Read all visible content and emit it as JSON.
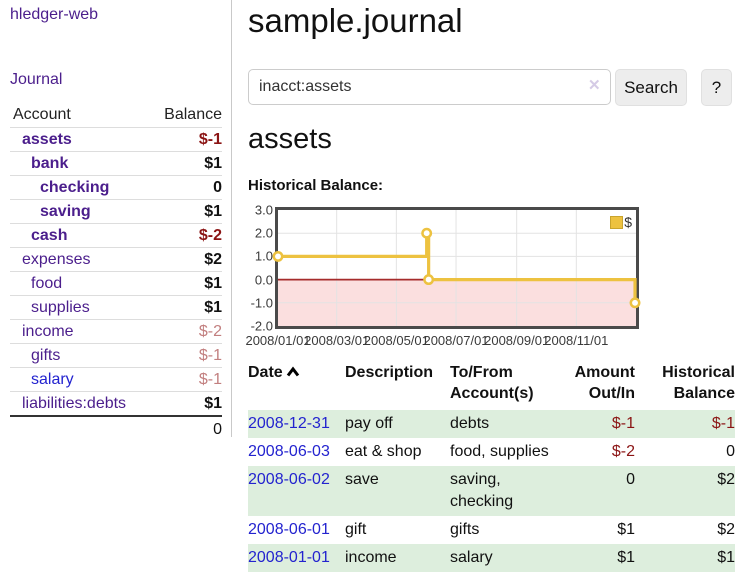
{
  "app": {
    "brand": "hledger-web",
    "nav_journal": "Journal"
  },
  "sidebar": {
    "headers": {
      "account": "Account",
      "balance": "Balance"
    },
    "accounts": [
      {
        "account": "assets",
        "balance": "$-1",
        "indent": 1,
        "strong": true,
        "bal_class": "neg-strong"
      },
      {
        "account": "bank",
        "balance": "$1",
        "indent": 2,
        "strong": true,
        "bal_class": "pos-strong"
      },
      {
        "account": "checking",
        "balance": "0",
        "indent": 3,
        "strong": true,
        "bal_class": "pos-strong"
      },
      {
        "account": "saving",
        "balance": "$1",
        "indent": 3,
        "strong": true,
        "bal_class": "pos-strong"
      },
      {
        "account": "cash",
        "balance": "$-2",
        "indent": 2,
        "strong": true,
        "bal_class": "neg-strong"
      },
      {
        "account": "expenses",
        "balance": "$2",
        "indent": 1,
        "strong": false,
        "bal_class": "pos-strong"
      },
      {
        "account": "food",
        "balance": "$1",
        "indent": 2,
        "strong": false,
        "bal_class": "pos-strong"
      },
      {
        "account": "supplies",
        "balance": "$1",
        "indent": 2,
        "strong": false,
        "bal_class": "pos-strong"
      },
      {
        "account": "income",
        "balance": "$-2",
        "indent": 1,
        "strong": false,
        "bal_class": "neg-soft"
      },
      {
        "account": "gifts",
        "balance": "$-1",
        "indent": 2,
        "strong": false,
        "bal_class": "neg-soft"
      },
      {
        "account": "salary",
        "balance": "$-1",
        "indent": 2,
        "strong": false,
        "bal_class": "neg-soft",
        "blue": true
      },
      {
        "account": "liabilities:debts",
        "balance": "$1",
        "indent": 1,
        "strong": false,
        "bal_class": "pos-strong"
      }
    ],
    "total": "0"
  },
  "main": {
    "title": "sample.journal",
    "search": {
      "value": "inacct:assets",
      "clear_icon": "✕",
      "search_label": "Search",
      "help_label": "?"
    },
    "heading": "assets",
    "chart_label": "Historical Balance:"
  },
  "chart_data": {
    "type": "line",
    "title": "Historical Balance",
    "step": true,
    "legend": "$",
    "legend_position": "top-right",
    "line_color": "#edc240",
    "marker": "open-circle",
    "zero_line_color": "#a62b2b",
    "negative_fill": "#fbdfdf",
    "grid_color": "#e3e3e3",
    "grid": true,
    "x_domain": [
      "2008-01-01",
      "2009-01-01"
    ],
    "ylim": [
      -2,
      3
    ],
    "yticks": [
      {
        "v": 3,
        "label": "3.0"
      },
      {
        "v": 2,
        "label": "2.0"
      },
      {
        "v": 1,
        "label": "1.0"
      },
      {
        "v": 0,
        "label": "0.0"
      },
      {
        "v": -1,
        "label": "-1.0"
      },
      {
        "v": -2,
        "label": "-2.0"
      }
    ],
    "xticks": [
      {
        "d": "2008-01-01",
        "label": "2008/01/01"
      },
      {
        "d": "2008-03-01",
        "label": "2008/03/01"
      },
      {
        "d": "2008-05-01",
        "label": "2008/05/01"
      },
      {
        "d": "2008-07-01",
        "label": "2008/07/01"
      },
      {
        "d": "2008-09-01",
        "label": "2008/09/01"
      },
      {
        "d": "2008-11-01",
        "label": "2008/11/01"
      }
    ],
    "series": [
      {
        "name": "$",
        "points": [
          {
            "d": "2008-01-01",
            "v": 1
          },
          {
            "d": "2008-06-01",
            "v": 2
          },
          {
            "d": "2008-06-03",
            "v": 0
          },
          {
            "d": "2008-12-31",
            "v": -1
          }
        ]
      }
    ]
  },
  "register": {
    "headers": {
      "date": "Date",
      "description": "Description",
      "accounts": "To/From Account(s)",
      "amount": "Amount Out/In",
      "balance": "Historical Balance"
    },
    "rows": [
      {
        "date": "2008-12-31",
        "description": "pay off",
        "accounts": "debts",
        "amount": "$-1",
        "amount_neg": true,
        "balance": "$-1",
        "balance_neg": true
      },
      {
        "date": "2008-06-03",
        "description": "eat & shop",
        "accounts": "food, supplies",
        "amount": "$-2",
        "amount_neg": true,
        "balance": "0",
        "balance_neg": false
      },
      {
        "date": "2008-06-02",
        "description": "save",
        "accounts": "saving, checking",
        "amount": "0",
        "amount_neg": false,
        "balance": "$2",
        "balance_neg": false
      },
      {
        "date": "2008-06-01",
        "description": "gift",
        "accounts": "gifts",
        "amount": "$1",
        "amount_neg": false,
        "balance": "$2",
        "balance_neg": false
      },
      {
        "date": "2008-01-01",
        "description": "income",
        "accounts": "salary",
        "amount": "$1",
        "amount_neg": false,
        "balance": "$1",
        "balance_neg": false
      }
    ]
  }
}
